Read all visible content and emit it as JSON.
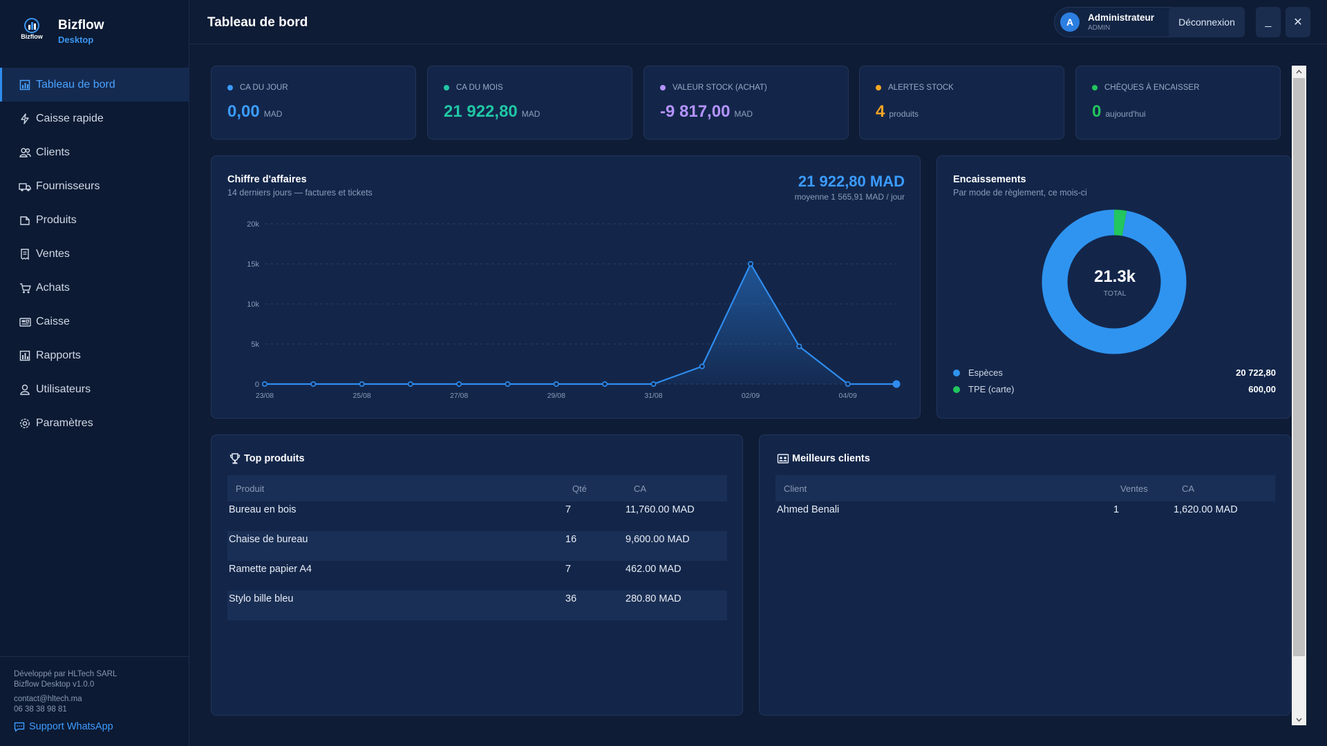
{
  "app": {
    "name": "Bizflow",
    "edition": "Desktop",
    "logo_text": "Bizflow"
  },
  "nav": [
    {
      "label": "Tableau de bord",
      "icon": "bar-chart-icon",
      "active": true
    },
    {
      "label": "Caisse rapide",
      "icon": "lightning-icon"
    },
    {
      "label": "Clients",
      "icon": "users-icon"
    },
    {
      "label": "Fournisseurs",
      "icon": "truck-icon"
    },
    {
      "label": "Produits",
      "icon": "box-icon"
    },
    {
      "label": "Ventes",
      "icon": "receipt-icon"
    },
    {
      "label": "Achats",
      "icon": "cart-icon"
    },
    {
      "label": "Caisse",
      "icon": "cash-register-icon"
    },
    {
      "label": "Rapports",
      "icon": "report-icon"
    },
    {
      "label": "Utilisateurs",
      "icon": "user-icon"
    },
    {
      "label": "Paramètres",
      "icon": "gear-icon"
    }
  ],
  "footer": {
    "developer": "Développé par HLTech SARL",
    "version": "Bizflow Desktop v1.0.0",
    "email": "contact@hltech.ma",
    "phone": "06 38 38 98 81",
    "support_label": "Support WhatsApp"
  },
  "header": {
    "title": "Tableau de bord",
    "user": {
      "initial": "A",
      "name": "Administrateur",
      "role": "ADMIN"
    },
    "logout_label": "Déconnexion",
    "minimize_label": "_",
    "close_label": "✕"
  },
  "kpis": [
    {
      "label": "CA DU JOUR",
      "value": "0,00",
      "unit": "MAD",
      "color": "#3b9cff"
    },
    {
      "label": "CA DU MOIS",
      "value": "21 922,80",
      "unit": "MAD",
      "color": "#21c6a4"
    },
    {
      "label": "VALEUR STOCK (ACHAT)",
      "value": "-9 817,00",
      "unit": "MAD",
      "color": "#b493ff"
    },
    {
      "label": "ALERTES STOCK",
      "value": "4",
      "unit": "produits",
      "color": "#f5a524"
    },
    {
      "label": "CHÈQUES À ENCAISSER",
      "value": "0",
      "unit": "aujourd'hui",
      "color": "#22c55e"
    }
  ],
  "revenue": {
    "title": "Chiffre d'affaires",
    "subtitle": "14 derniers jours — factures et tickets",
    "total": "21 922,80 MAD",
    "average": "moyenne 1 565,91 MAD / jour"
  },
  "chart_data": {
    "type": "area",
    "x": [
      "23/08",
      "24/08",
      "25/08",
      "26/08",
      "27/08",
      "28/08",
      "29/08",
      "30/08",
      "31/08",
      "01/09",
      "02/09",
      "03/09",
      "04/09",
      "05/09"
    ],
    "x_tick_labels": [
      "23/08",
      "25/08",
      "27/08",
      "29/08",
      "31/08",
      "02/09",
      "04/09"
    ],
    "series": [
      {
        "values": [
          0,
          0,
          0,
          0,
          0,
          0,
          0,
          0,
          0,
          2200,
          15000,
          4700,
          0,
          0
        ],
        "color": "#2f8df0"
      }
    ],
    "y_ticks": [
      "0",
      "5k",
      "10k",
      "15k",
      "20k"
    ],
    "ylim": [
      0,
      20000
    ],
    "grid": true
  },
  "payments": {
    "title": "Encaissements",
    "subtitle": "Par mode de règlement, ce mois-ci",
    "center_value": "21.3k",
    "center_label": "TOTAL",
    "items": [
      {
        "label": "Espèces",
        "display": "20 722,80",
        "value": 20722.8,
        "color": "#2f94f0"
      },
      {
        "label": "TPE (carte)",
        "display": "600,00",
        "value": 600.0,
        "color": "#22c55e"
      }
    ]
  },
  "top_products": {
    "title": "Top produits",
    "columns": [
      "Produit",
      "Qté",
      "CA"
    ],
    "rows": [
      [
        "Bureau en bois",
        "7",
        "11,760.00 MAD"
      ],
      [
        "Chaise de bureau",
        "16",
        "9,600.00 MAD"
      ],
      [
        "Ramette papier A4",
        "7",
        "462.00 MAD"
      ],
      [
        "Stylo bille bleu",
        "36",
        "280.80 MAD"
      ]
    ]
  },
  "top_clients": {
    "title": "Meilleurs clients",
    "columns": [
      "Client",
      "Ventes",
      "CA"
    ],
    "rows": [
      [
        "Ahmed Benali",
        "1",
        "1,620.00 MAD"
      ]
    ]
  }
}
